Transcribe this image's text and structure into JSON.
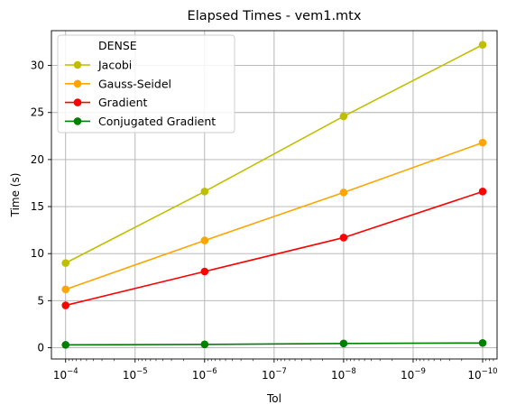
{
  "chart_data": {
    "type": "line",
    "title": "Elapsed Times - vem1.mtx",
    "xlabel": "Tol",
    "ylabel": "Time (s)",
    "xscale": "log",
    "x_inverted": true,
    "x": [
      0.0001,
      1e-06,
      1e-08,
      1e-10
    ],
    "x_ticks": [
      {
        "value": 0.0001,
        "base": "10",
        "exp": "−4"
      },
      {
        "value": 1e-05,
        "base": "10",
        "exp": "−5"
      },
      {
        "value": 1e-06,
        "base": "10",
        "exp": "−6"
      },
      {
        "value": 1e-07,
        "base": "10",
        "exp": "−7"
      },
      {
        "value": 1e-08,
        "base": "10",
        "exp": "−8"
      },
      {
        "value": 1e-09,
        "base": "10",
        "exp": "−9"
      },
      {
        "value": 1e-10,
        "base": "10",
        "exp": "−10"
      }
    ],
    "xlim": [
      0.00016,
      6.2e-11
    ],
    "ylim": [
      -1.2,
      33.7
    ],
    "y_ticks": [
      0,
      5,
      10,
      15,
      20,
      25,
      30
    ],
    "grid": true,
    "legend": {
      "placement": "top-left",
      "title": "DENSE"
    },
    "series": [
      {
        "name": "Jacobi",
        "color": "#bfbf00",
        "values": [
          9.0,
          16.6,
          24.6,
          32.2
        ]
      },
      {
        "name": "Gauss-Seidel",
        "color": "#ffa500",
        "values": [
          6.2,
          11.4,
          16.5,
          21.8
        ]
      },
      {
        "name": "Gradient",
        "color": "#ff0000",
        "values": [
          4.5,
          8.1,
          11.7,
          16.6
        ]
      },
      {
        "name": "Conjugated Gradient",
        "color": "#008000",
        "values": [
          0.3,
          0.35,
          0.45,
          0.5
        ]
      }
    ]
  }
}
